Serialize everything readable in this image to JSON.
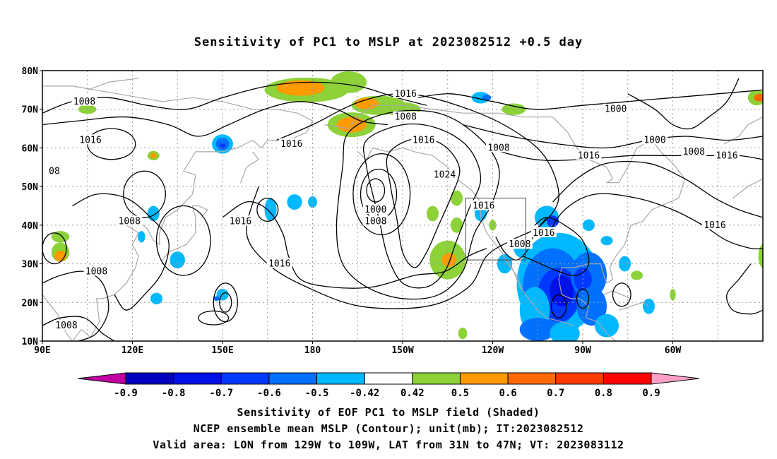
{
  "title": "Sensitivity of PC1 to MSLP at 2023082512 +0.5 day",
  "lat_labels": [
    "80N",
    "70N",
    "60N",
    "50N",
    "40N",
    "30N",
    "20N",
    "10N"
  ],
  "lon_labels": [
    "90E",
    "120E",
    "150E",
    "180",
    "150W",
    "120W",
    "90W",
    "60W"
  ],
  "contour_labels": [
    {
      "text": "1008",
      "lon": 104,
      "lat": 72
    },
    {
      "text": "1016",
      "lon": 211,
      "lat": 74
    },
    {
      "text": "1008",
      "lon": 211,
      "lat": 68
    },
    {
      "text": "1000",
      "lon": 281,
      "lat": 70
    },
    {
      "text": "1016",
      "lon": 106,
      "lat": 62
    },
    {
      "text": "1016",
      "lon": 173,
      "lat": 61
    },
    {
      "text": "1016",
      "lon": 217,
      "lat": 62
    },
    {
      "text": "1008",
      "lon": 242,
      "lat": 60
    },
    {
      "text": "1016",
      "lon": 272,
      "lat": 58
    },
    {
      "text": "1000",
      "lon": 294,
      "lat": 62
    },
    {
      "text": "1008",
      "lon": 307,
      "lat": 59
    },
    {
      "text": "1016",
      "lon": 318,
      "lat": 58
    },
    {
      "text": "08",
      "lon": 94,
      "lat": 54
    },
    {
      "text": "1024",
      "lon": 224,
      "lat": 53
    },
    {
      "text": "1000",
      "lon": 201,
      "lat": 44
    },
    {
      "text": "1008",
      "lon": 201,
      "lat": 41
    },
    {
      "text": "1016",
      "lon": 237,
      "lat": 45
    },
    {
      "text": "1008",
      "lon": 119,
      "lat": 41
    },
    {
      "text": "1016",
      "lon": 156,
      "lat": 41
    },
    {
      "text": "1016",
      "lon": 314,
      "lat": 40
    },
    {
      "text": "1016",
      "lon": 257,
      "lat": 38
    },
    {
      "text": "1008",
      "lon": 249,
      "lat": 35
    },
    {
      "text": "1016",
      "lon": 169,
      "lat": 30
    },
    {
      "text": "1008",
      "lon": 108,
      "lat": 28
    },
    {
      "text": "1008",
      "lon": 98,
      "lat": 14
    }
  ],
  "colorbar": {
    "ticks": [
      "-0.9",
      "-0.8",
      "-0.7",
      "-0.6",
      "-0.5",
      "-0.42",
      "0.42",
      "0.5",
      "0.6",
      "0.7",
      "0.8",
      "0.9"
    ],
    "colors": [
      "#c000a0",
      "#0000c0",
      "#0010e8",
      "#0038ff",
      "#0070ff",
      "#00b8ff",
      "#ffffff",
      "#8cd238",
      "#ff9a00",
      "#ff6a00",
      "#ff3a00",
      "#ff0000",
      "#ffa0c8"
    ]
  },
  "caption_lines": [
    "Sensitivity of EOF PC1 to MSLP field (Shaded)",
    "NCEP ensemble mean MSLP (Contour); unit(mb); IT:2023082512",
    "Valid area: LON from 129W to 109W, LAT from 31N to 47N; VT: 2023083112"
  ],
  "valid_area": {
    "lon_min": -129,
    "lon_max": -109,
    "lat_min": 31,
    "lat_max": 47
  }
}
